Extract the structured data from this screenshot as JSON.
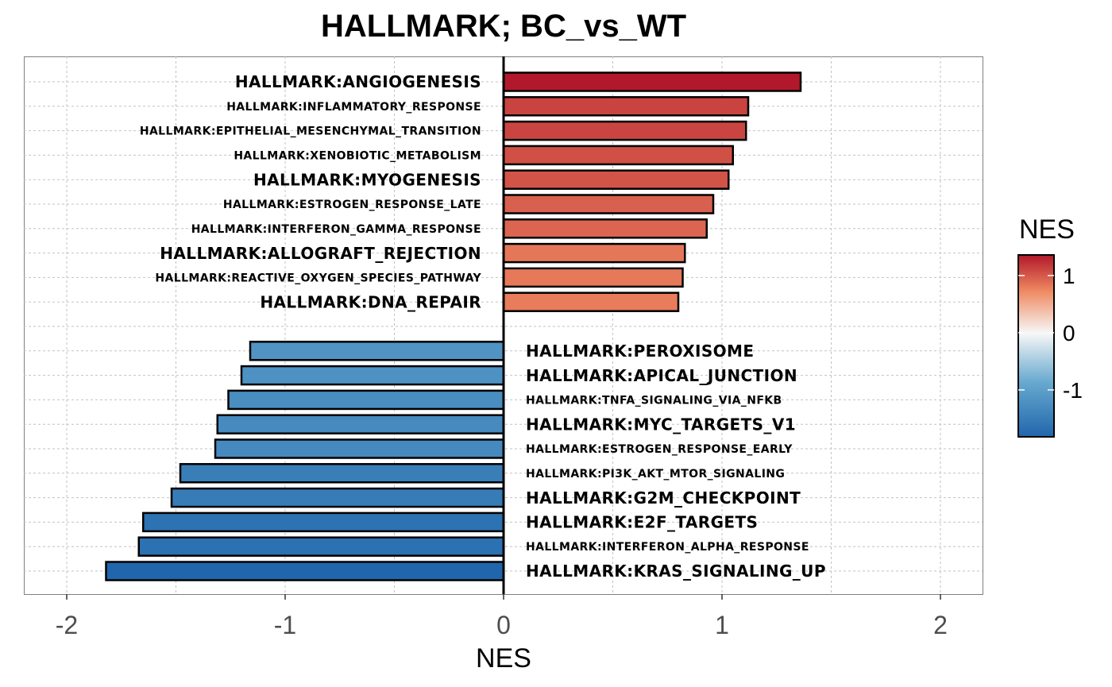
{
  "chart_data": {
    "type": "bar",
    "orientation": "horizontal",
    "title": "HALLMARK; BC_vs_WT",
    "xlabel": "NES",
    "ylabel": "",
    "xlim": [
      -2.2,
      2.2
    ],
    "x_ticks": [
      "-2",
      "-1",
      "0",
      "1",
      "2"
    ],
    "x_tick_values": [
      -2,
      -1,
      0,
      1,
      2
    ],
    "grid": true,
    "legend": {
      "title": "NES",
      "placement": "right",
      "ticks": [
        "1",
        "0",
        "-1"
      ],
      "tick_values": [
        1,
        0,
        -1
      ],
      "range": [
        -1.82,
        1.36
      ],
      "colors": [
        "#2166ac",
        "#67a9cf",
        "#f7f7f7",
        "#ef8a62",
        "#b2182b"
      ]
    },
    "bars": [
      {
        "label": "HALLMARK:ANGIOGENESIS",
        "value": 1.36,
        "emphasis": true
      },
      {
        "label": "HALLMARK:INFLAMMATORY_RESPONSE",
        "value": 1.12,
        "emphasis": false
      },
      {
        "label": "HALLMARK:EPITHELIAL_MESENCHYMAL_TRANSITION",
        "value": 1.11,
        "emphasis": false
      },
      {
        "label": "HALLMARK:XENOBIOTIC_METABOLISM",
        "value": 1.05,
        "emphasis": false
      },
      {
        "label": "HALLMARK:MYOGENESIS",
        "value": 1.03,
        "emphasis": true
      },
      {
        "label": "HALLMARK:ESTROGEN_RESPONSE_LATE",
        "value": 0.96,
        "emphasis": false
      },
      {
        "label": "HALLMARK:INTERFERON_GAMMA_RESPONSE",
        "value": 0.93,
        "emphasis": false
      },
      {
        "label": "HALLMARK:ALLOGRAFT_REJECTION",
        "value": 0.83,
        "emphasis": true
      },
      {
        "label": "HALLMARK:REACTIVE_OXYGEN_SPECIES_PATHWAY",
        "value": 0.82,
        "emphasis": false
      },
      {
        "label": "HALLMARK:DNA_REPAIR",
        "value": 0.8,
        "emphasis": true
      },
      {
        "label": "",
        "value": null,
        "emphasis": false
      },
      {
        "label": "HALLMARK:PEROXISOME",
        "value": -1.16,
        "emphasis": true
      },
      {
        "label": "HALLMARK:APICAL_JUNCTION",
        "value": -1.2,
        "emphasis": true
      },
      {
        "label": "HALLMARK:TNFA_SIGNALING_VIA_NFKB",
        "value": -1.26,
        "emphasis": false
      },
      {
        "label": "HALLMARK:MYC_TARGETS_V1",
        "value": -1.31,
        "emphasis": true
      },
      {
        "label": "HALLMARK:ESTROGEN_RESPONSE_EARLY",
        "value": -1.32,
        "emphasis": false
      },
      {
        "label": "HALLMARK:PI3K_AKT_MTOR_SIGNALING",
        "value": -1.48,
        "emphasis": false
      },
      {
        "label": "HALLMARK:G2M_CHECKPOINT",
        "value": -1.52,
        "emphasis": true
      },
      {
        "label": "HALLMARK:E2F_TARGETS",
        "value": -1.65,
        "emphasis": true
      },
      {
        "label": "HALLMARK:INTERFERON_ALPHA_RESPONSE",
        "value": -1.67,
        "emphasis": false
      },
      {
        "label": "HALLMARK:KRAS_SIGNALING_UP",
        "value": -1.82,
        "emphasis": true
      }
    ]
  }
}
